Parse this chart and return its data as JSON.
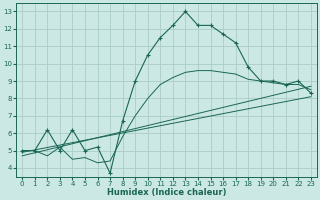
{
  "xlabel": "Humidex (Indice chaleur)",
  "bg_color": "#cce8e4",
  "grid_color": "#aaccc8",
  "line_color": "#1a6655",
  "ylim": [
    3.5,
    13.5
  ],
  "xlim": [
    -0.5,
    23.5
  ],
  "yticks": [
    4,
    5,
    6,
    7,
    8,
    9,
    10,
    11,
    12,
    13
  ],
  "xticks": [
    0,
    1,
    2,
    3,
    4,
    5,
    6,
    7,
    8,
    9,
    10,
    11,
    12,
    13,
    14,
    15,
    16,
    17,
    18,
    19,
    20,
    21,
    22,
    23
  ],
  "main_x": [
    0,
    1,
    2,
    3,
    4,
    5,
    6,
    7,
    8,
    9,
    10,
    11,
    12,
    13,
    14,
    15,
    16,
    17,
    18,
    19,
    20,
    21,
    22,
    23
  ],
  "main_y": [
    5.0,
    5.0,
    6.2,
    5.0,
    6.2,
    5.0,
    5.2,
    3.7,
    6.7,
    9.0,
    10.5,
    11.5,
    12.2,
    13.0,
    12.2,
    12.2,
    11.7,
    11.2,
    9.8,
    9.0,
    9.0,
    8.8,
    9.0,
    8.3
  ],
  "smooth_x": [
    0,
    1,
    2,
    3,
    4,
    5,
    6,
    7,
    8,
    9,
    10,
    11,
    12,
    13,
    14,
    15,
    16,
    17,
    18,
    19,
    20,
    21,
    22,
    23
  ],
  "smooth_y": [
    5.0,
    5.0,
    4.7,
    5.2,
    4.5,
    4.6,
    4.3,
    4.4,
    5.8,
    7.0,
    8.0,
    8.8,
    9.2,
    9.5,
    9.6,
    9.6,
    9.5,
    9.4,
    9.1,
    9.0,
    8.9,
    8.8,
    8.8,
    8.5
  ],
  "line3_x": [
    0,
    23
  ],
  "line3_y": [
    4.7,
    8.7
  ],
  "line4_x": [
    0,
    23
  ],
  "line4_y": [
    4.9,
    8.1
  ]
}
